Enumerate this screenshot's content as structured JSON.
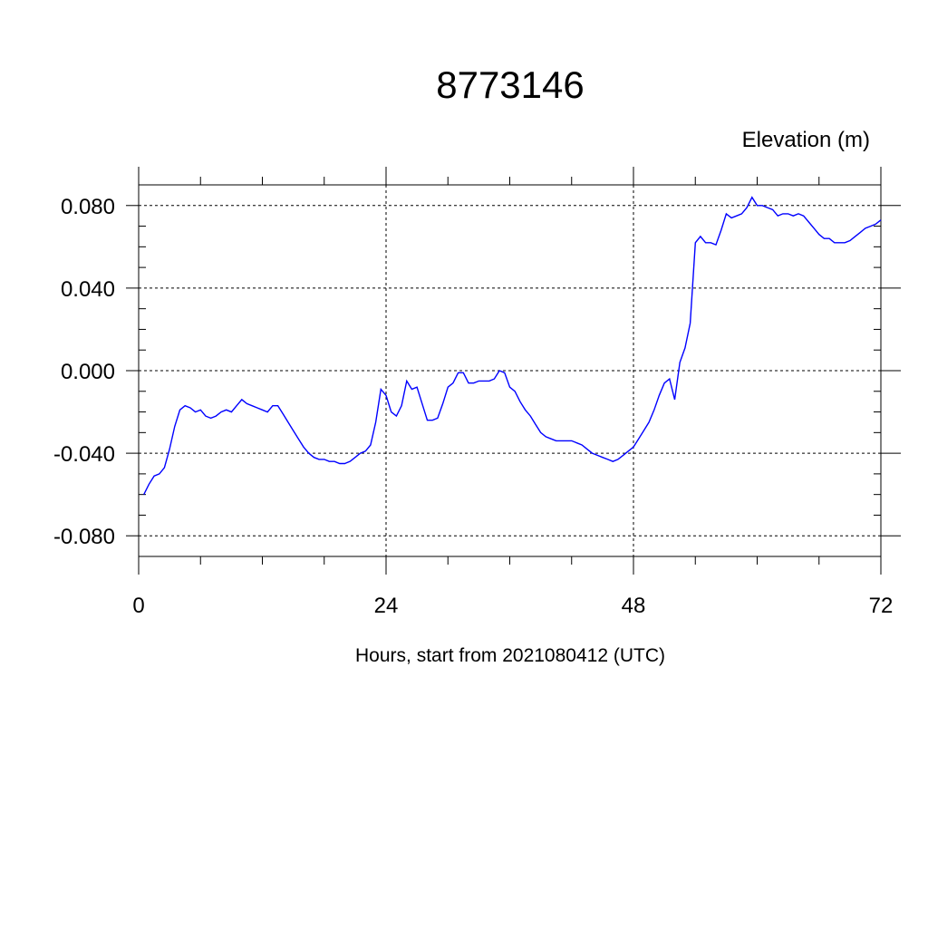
{
  "chart_data": {
    "type": "line",
    "title": "8773146",
    "ylabel": "Elevation (m)",
    "xlabel": "Hours, start from 2021080412 (UTC)",
    "xlim": [
      0,
      72
    ],
    "ylim": [
      -0.09,
      0.09
    ],
    "x_ticks": [
      0,
      24,
      48,
      72
    ],
    "x_tick_labels": [
      "0",
      "24",
      "48",
      "72"
    ],
    "y_ticks": [
      -0.08,
      -0.04,
      0.0,
      0.04,
      0.08
    ],
    "y_tick_labels": [
      "-0.080",
      "-0.040",
      "0.000",
      "0.040",
      "0.080"
    ],
    "grid": true,
    "line_color": "#0000ff",
    "series": [
      {
        "x": [
          0.5,
          1.0,
          1.5,
          2.0,
          2.5,
          3.0,
          3.5,
          4.0,
          4.5,
          5.0,
          5.5,
          6.0,
          6.5,
          7.0,
          7.5,
          8.0,
          8.5,
          9.0,
          9.5,
          10.0,
          10.5,
          11.0,
          11.5,
          12.0,
          12.5,
          13.0,
          13.5,
          14.0,
          14.5,
          15.0,
          15.5,
          16.0,
          16.5,
          17.0,
          17.5,
          18.0,
          18.5,
          19.0,
          19.5,
          20.0,
          20.5,
          21.0,
          21.5,
          22.0,
          22.5,
          23.0,
          23.5,
          24.0,
          24.5,
          25.0,
          25.5,
          26.0,
          26.5,
          27.0,
          27.5,
          28.0,
          28.5,
          29.0,
          29.5,
          30.0,
          30.5,
          31.0,
          31.5,
          32.0,
          32.5,
          33.0,
          33.5,
          34.0,
          34.5,
          35.0,
          35.5,
          36.0,
          36.5,
          37.0,
          37.5,
          38.0,
          38.5,
          39.0,
          39.5,
          40.0,
          40.5,
          41.0,
          41.5,
          42.0,
          42.5,
          43.0,
          43.5,
          44.0,
          44.5,
          45.0,
          45.5,
          46.0,
          46.5,
          47.0,
          47.5,
          48.0,
          48.5,
          49.0,
          49.5,
          50.0,
          50.5,
          51.0,
          51.5,
          52.0,
          52.5,
          53.0,
          53.5,
          54.0,
          54.5,
          55.0,
          55.5,
          56.0,
          56.5,
          57.0,
          57.5,
          58.0,
          58.5,
          59.0,
          59.5,
          60.0,
          60.5,
          61.0,
          61.5,
          62.0,
          62.5,
          63.0,
          63.5,
          64.0,
          64.5,
          65.0,
          65.5,
          66.0,
          66.5,
          67.0,
          67.5,
          68.0,
          68.5,
          69.0,
          69.5,
          70.0,
          70.5,
          71.0,
          71.5,
          72.0
        ],
        "values": [
          -0.06,
          -0.055,
          -0.051,
          -0.05,
          -0.047,
          -0.038,
          -0.027,
          -0.019,
          -0.017,
          -0.018,
          -0.02,
          -0.019,
          -0.022,
          -0.023,
          -0.022,
          -0.02,
          -0.019,
          -0.02,
          -0.017,
          -0.014,
          -0.016,
          -0.017,
          -0.018,
          -0.019,
          -0.02,
          -0.017,
          -0.017,
          -0.021,
          -0.025,
          -0.029,
          -0.033,
          -0.037,
          -0.04,
          -0.042,
          -0.043,
          -0.043,
          -0.044,
          -0.044,
          -0.045,
          -0.045,
          -0.044,
          -0.042,
          -0.04,
          -0.039,
          -0.036,
          -0.025,
          -0.009,
          -0.012,
          -0.02,
          -0.022,
          -0.017,
          -0.005,
          -0.009,
          -0.008,
          -0.016,
          -0.024,
          -0.024,
          -0.023,
          -0.016,
          -0.008,
          -0.006,
          -0.001,
          -0.001,
          -0.006,
          -0.006,
          -0.005,
          -0.005,
          -0.005,
          -0.004,
          0.0,
          -0.001,
          -0.008,
          -0.01,
          -0.015,
          -0.019,
          -0.022,
          -0.026,
          -0.03,
          -0.032,
          -0.033,
          -0.034,
          -0.034,
          -0.034,
          -0.034,
          -0.035,
          -0.036,
          -0.038,
          -0.04,
          -0.041,
          -0.042,
          -0.043,
          -0.044,
          -0.043,
          -0.041,
          -0.039,
          -0.037,
          -0.033,
          -0.029,
          -0.025,
          -0.019,
          -0.012,
          -0.006,
          -0.004,
          -0.014,
          0.004,
          0.011,
          0.023,
          0.062,
          0.065,
          0.062,
          0.062,
          0.061,
          0.068,
          0.076,
          0.074,
          0.075,
          0.076,
          0.079,
          0.084,
          0.08,
          0.08,
          0.079,
          0.078,
          0.075,
          0.076,
          0.076,
          0.075,
          0.076,
          0.075,
          0.072,
          0.069,
          0.066,
          0.064,
          0.064,
          0.062,
          0.062,
          0.062,
          0.063,
          0.065,
          0.067,
          0.069,
          0.07,
          0.071,
          0.073
        ]
      }
    ]
  }
}
